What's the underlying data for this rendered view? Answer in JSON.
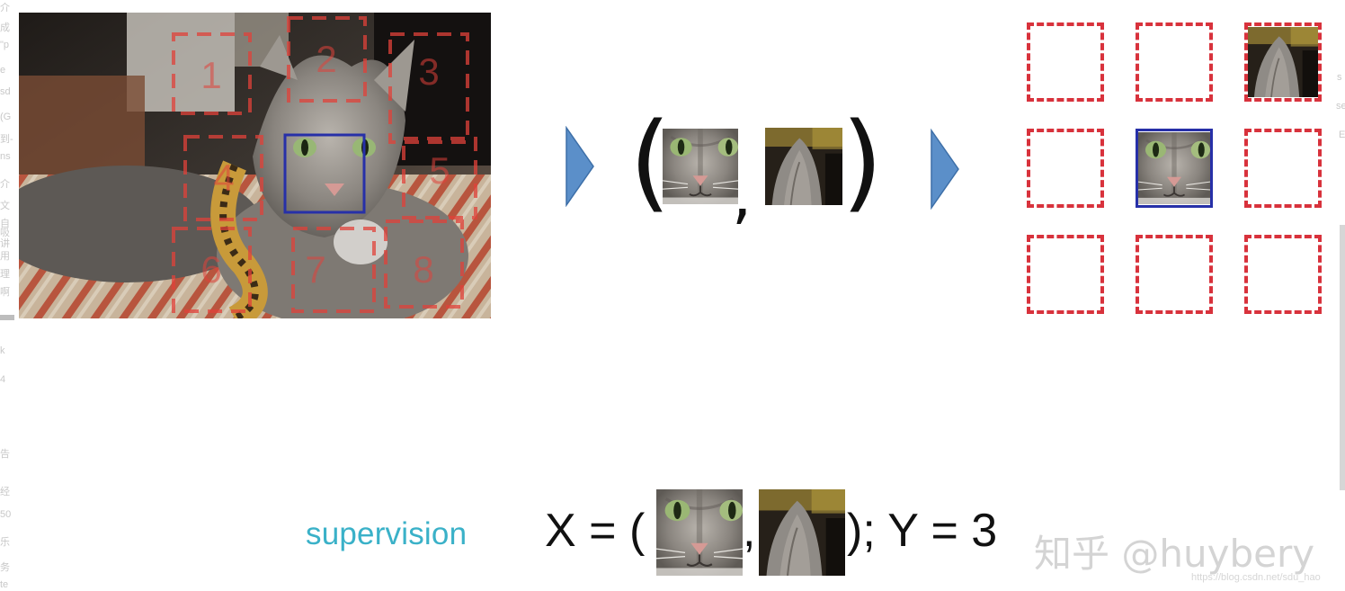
{
  "margin_fragments": {
    "left": [
      "介",
      "成",
      "\"p",
      "e",
      "sd",
      "(G",
      "到-",
      "ns",
      "介",
      "文",
      "自",
      "讲",
      "吸",
      "用",
      "理",
      "啊",
      "k",
      "4",
      "告",
      "经",
      "50",
      "乐",
      "务",
      "te"
    ],
    "right": [
      "s",
      "se",
      "E"
    ]
  },
  "patches": {
    "labels": [
      "1",
      "2",
      "3",
      "4",
      "5",
      "6",
      "7",
      "8"
    ],
    "dash_color": "#e0413a",
    "center_box_color": "#2730a8"
  },
  "grid": {
    "dash_color": "#d8323c",
    "center_color": "#2730a8",
    "filled_cells": [
      "top-right",
      "center"
    ]
  },
  "arrow_color": "#5b8fc9",
  "pair": {
    "open_paren": "(",
    "comma": ",",
    "close_paren": ")"
  },
  "bottom": {
    "label": "supervision",
    "label_color": "#3ab1c8",
    "x_text": "X = (",
    "comma": ",",
    "y_text": "); Y = 3"
  },
  "watermark": "知乎 @huybery",
  "url_watermark": "https://blog.csdn.net/sdu_hao"
}
